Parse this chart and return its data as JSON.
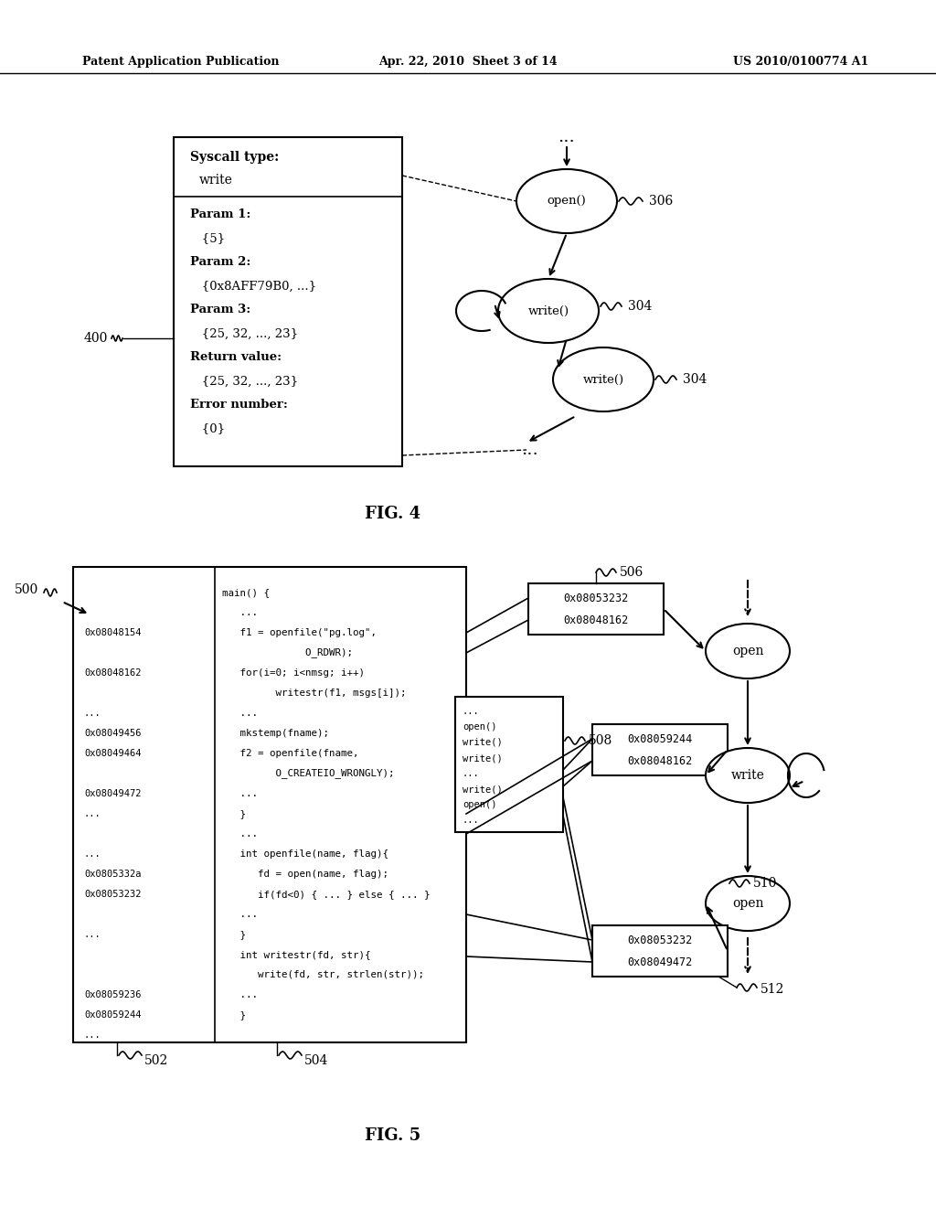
{
  "header_left": "Patent Application Publication",
  "header_center": "Apr. 22, 2010  Sheet 3 of 14",
  "header_right": "US 2010/0100774 A1",
  "fig4_label": "FIG. 4",
  "fig5_label": "FIG. 5",
  "background_color": "#ffffff"
}
